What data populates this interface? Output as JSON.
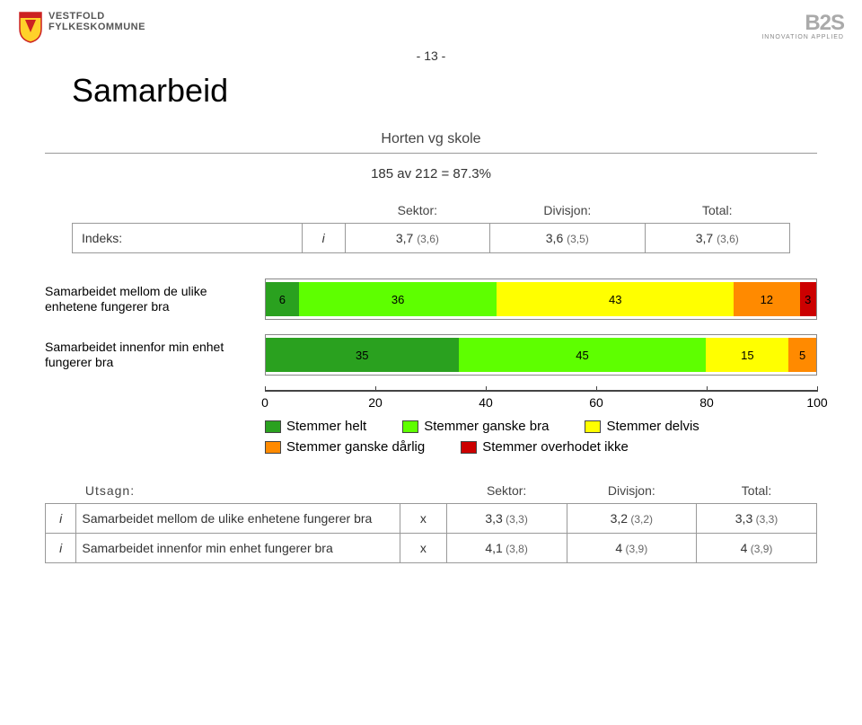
{
  "page_number": "- 13 -",
  "brand": {
    "line1": "VESTFOLD",
    "line2": "FYLKESKOMMUNE"
  },
  "b2s": {
    "logo_text": "B2S",
    "tagline": "INNOVATION APPLIED"
  },
  "title": "Samarbeid",
  "subtitle": "Horten vg skole",
  "response_rate": "185 av 212 = 87.3%",
  "index_table": {
    "headers": [
      "",
      "",
      "Sektor:",
      "Divisjon:",
      "Total:"
    ],
    "row_label": "Indeks:",
    "row_score_letter": "i",
    "cells": [
      {
        "val": "3,7",
        "paren": "(3,6)"
      },
      {
        "val": "3,6",
        "paren": "(3,5)"
      },
      {
        "val": "3,7",
        "paren": "(3,6)"
      }
    ]
  },
  "chart": {
    "type": "stacked-bar-horizontal",
    "xlim": [
      0,
      100
    ],
    "xtick_step": 20,
    "xtick_labels": [
      "0",
      "20",
      "40",
      "60",
      "80",
      "100"
    ],
    "background_color": "#ffffff",
    "border_color": "#888888",
    "axis_color": "#444444",
    "label_fontsize": 14,
    "value_fontsize": 13,
    "series_colors": {
      "stemmer_helt": "#2aa11f",
      "stemmer_ganske_bra": "#5eff00",
      "stemmer_delvis": "#ffff00",
      "stemmer_ganske_darlig": "#ff8a00",
      "stemmer_overhodet_ikke": "#cc0000"
    },
    "rows": [
      {
        "label": "Samarbeidet mellom de ulike enhetene fungerer bra",
        "segments": [
          {
            "value": 6,
            "color_key": "stemmer_helt"
          },
          {
            "value": 36,
            "color_key": "stemmer_ganske_bra"
          },
          {
            "value": 43,
            "color_key": "stemmer_delvis"
          },
          {
            "value": 12,
            "color_key": "stemmer_ganske_darlig"
          },
          {
            "value": 3,
            "color_key": "stemmer_overhodet_ikke"
          }
        ]
      },
      {
        "label": "Samarbeidet innenfor min enhet fungerer bra",
        "segments": [
          {
            "value": 35,
            "color_key": "stemmer_helt"
          },
          {
            "value": 45,
            "color_key": "stemmer_ganske_bra"
          },
          {
            "value": 15,
            "color_key": "stemmer_delvis"
          },
          {
            "value": 5,
            "color_key": "stemmer_ganske_darlig"
          }
        ]
      }
    ]
  },
  "legend": {
    "items": [
      {
        "label": "Stemmer helt",
        "color_key": "stemmer_helt"
      },
      {
        "label": "Stemmer ganske bra",
        "color_key": "stemmer_ganske_bra"
      },
      {
        "label": "Stemmer delvis",
        "color_key": "stemmer_delvis"
      },
      {
        "label": "Stemmer ganske dårlig",
        "color_key": "stemmer_ganske_darlig"
      },
      {
        "label": "Stemmer overhodet ikke",
        "color_key": "stemmer_overhodet_ikke"
      }
    ]
  },
  "utsagn_table": {
    "headers": [
      "Utsagn:",
      "",
      "Sektor:",
      "Divisjon:",
      "Total:"
    ],
    "rows": [
      {
        "score_letter": "i",
        "label": "Samarbeidet mellom de ulike enhetene fungerer bra",
        "x": "x",
        "cells": [
          {
            "val": "3,3",
            "paren": "(3,3)"
          },
          {
            "val": "3,2",
            "paren": "(3,2)"
          },
          {
            "val": "3,3",
            "paren": "(3,3)"
          }
        ]
      },
      {
        "score_letter": "i",
        "label": "Samarbeidet innenfor min enhet fungerer bra",
        "x": "x",
        "cells": [
          {
            "val": "4,1",
            "paren": "(3,8)"
          },
          {
            "val": "4",
            "paren": "(3,9)"
          },
          {
            "val": "4",
            "paren": "(3,9)"
          }
        ]
      }
    ]
  }
}
